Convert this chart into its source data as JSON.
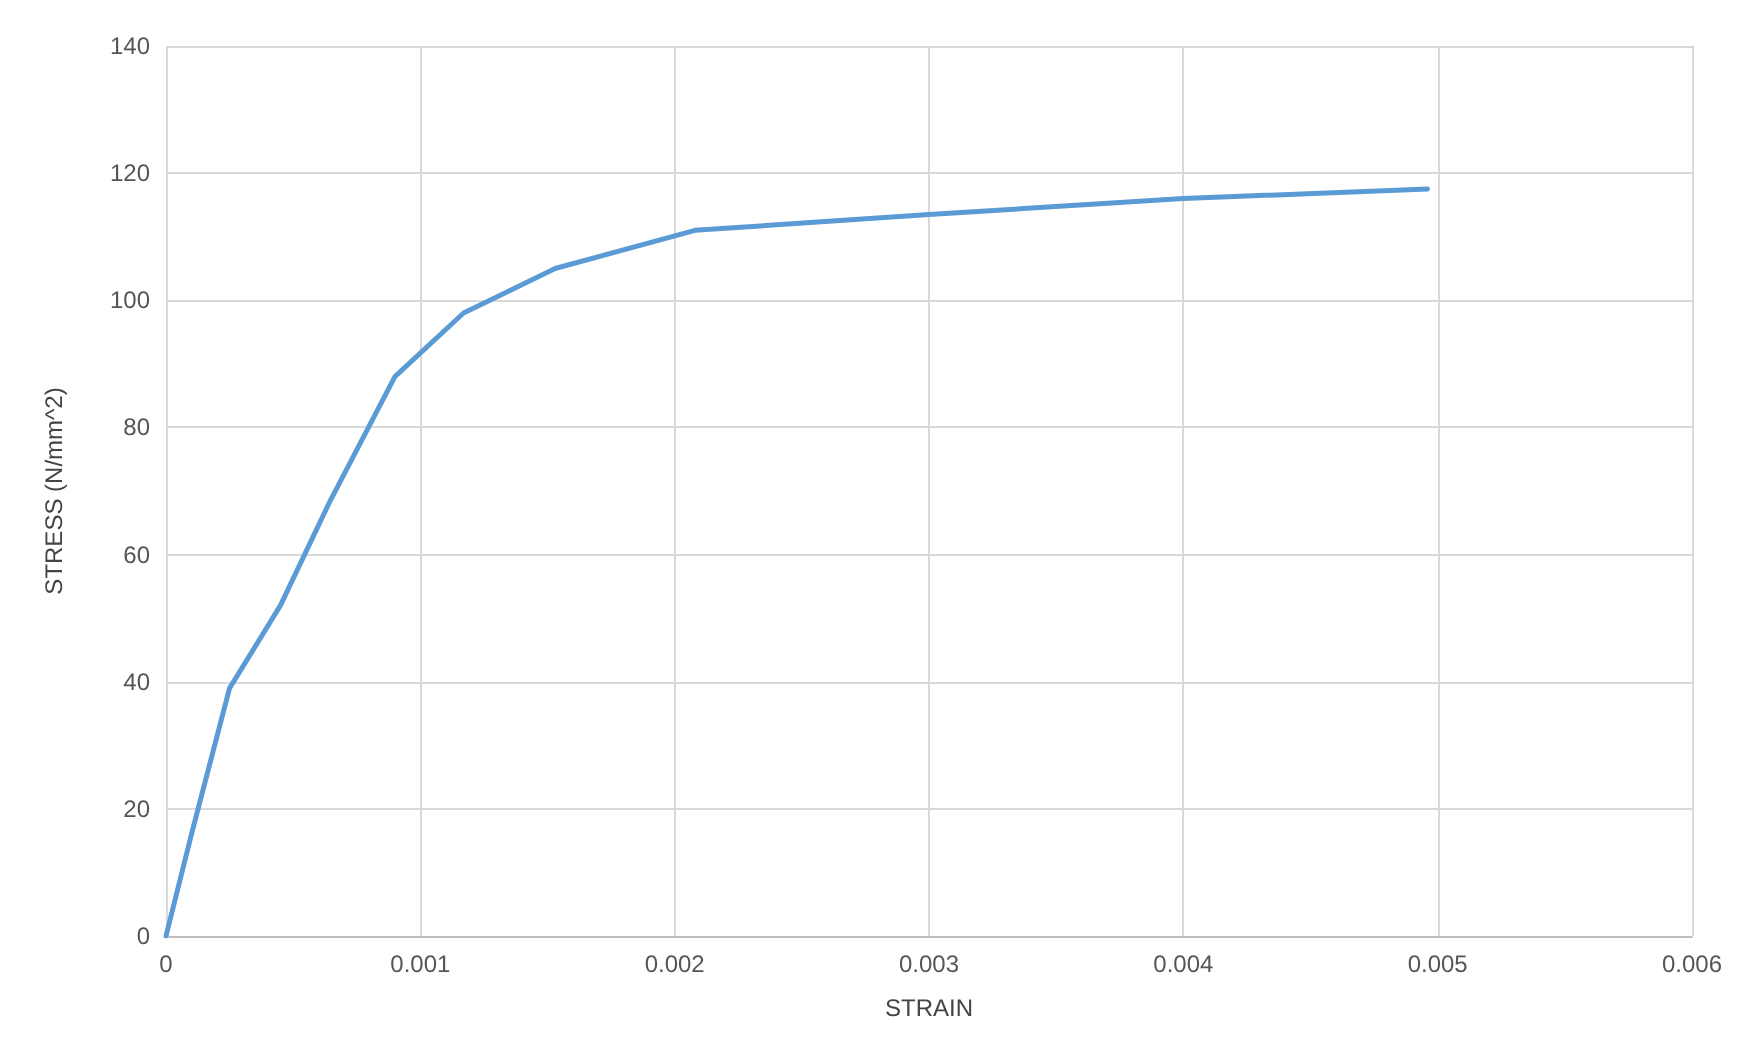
{
  "chart_data": {
    "type": "line",
    "xlabel": "STRAIN",
    "ylabel": "STRESS (N/mm^2)",
    "series": [
      {
        "color": "#5b9bd5",
        "x": [
          0,
          0.0001,
          0.00025,
          0.00045,
          0.00064,
          0.0009,
          0.00117,
          0.00153,
          0.00208,
          0.003,
          0.004,
          0.00496
        ],
        "values": [
          0,
          16,
          39,
          52,
          68,
          88,
          98,
          105,
          111,
          113.5,
          116,
          117.5
        ]
      }
    ],
    "xlim": [
      0,
      0.006
    ],
    "xticks": [
      0,
      0.001,
      0.002,
      0.003,
      0.004,
      0.005,
      0.006
    ],
    "ylim": [
      0,
      140
    ],
    "yticks": [
      0,
      20,
      40,
      60,
      80,
      100,
      120,
      140
    ],
    "grid": true,
    "marker": "none"
  }
}
